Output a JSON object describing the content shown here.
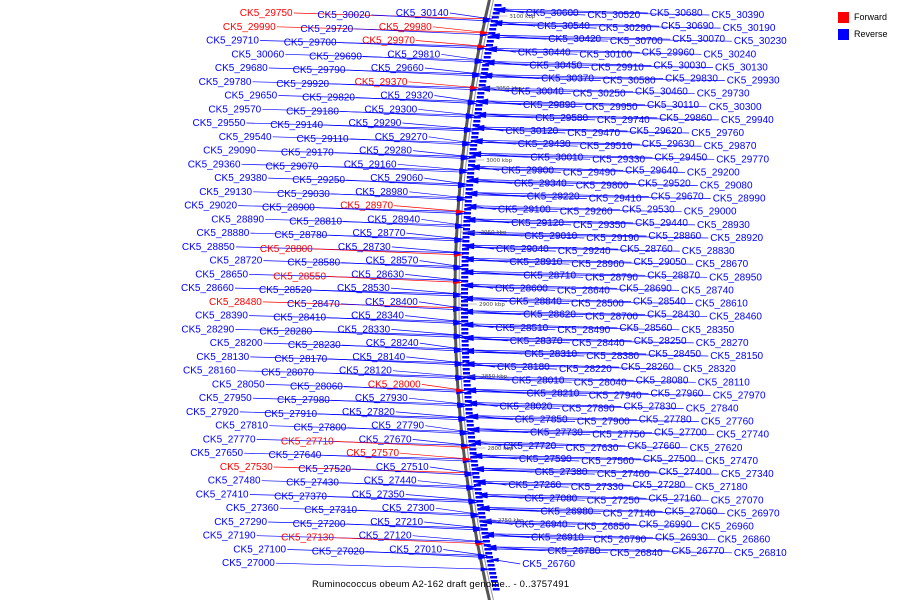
{
  "legend": {
    "forward_label": "Forward",
    "reverse_label": "Reverse",
    "forward_color": "#ff0000",
    "reverse_color": "#0000ff"
  },
  "caption": "Ruminococcus obeum A2-162 draft genome.. - 0..3757491",
  "scale_labels": [
    "3100 kbp",
    "3050 kbp",
    "3000 kbp",
    "2950 kbp",
    "2900 kbp",
    "2850 kbp",
    "2800 kbp",
    "2750 kbp"
  ],
  "left_labels": [
    {
      "text": "CK5_29750",
      "strand": "forward"
    },
    {
      "text": "CK5_30020",
      "strand": "reverse"
    },
    {
      "text": "CK5_30140",
      "strand": "reverse"
    },
    {
      "text": "CK5_29990",
      "strand": "forward"
    },
    {
      "text": "CK5_29720",
      "strand": "reverse"
    },
    {
      "text": "CK5_29980",
      "strand": "forward"
    },
    {
      "text": "CK5_29710",
      "strand": "reverse"
    },
    {
      "text": "CK5_29700",
      "strand": "reverse"
    },
    {
      "text": "CK5_29970",
      "strand": "forward"
    },
    {
      "text": "CK5_30060",
      "strand": "reverse"
    },
    {
      "text": "CK5_29690",
      "strand": "reverse"
    },
    {
      "text": "CK5_29810",
      "strand": "reverse"
    },
    {
      "text": "CK5_29680",
      "strand": "reverse"
    },
    {
      "text": "CK5_29790",
      "strand": "reverse"
    },
    {
      "text": "CK5_29660",
      "strand": "reverse"
    },
    {
      "text": "CK5_29780",
      "strand": "reverse"
    },
    {
      "text": "CK5_29920",
      "strand": "reverse"
    },
    {
      "text": "CK5_29370",
      "strand": "forward"
    },
    {
      "text": "CK5_29650",
      "strand": "reverse"
    },
    {
      "text": "CK5_29820",
      "strand": "reverse"
    },
    {
      "text": "CK5_29320",
      "strand": "reverse"
    },
    {
      "text": "CK5_29570",
      "strand": "reverse"
    },
    {
      "text": "CK5_29180",
      "strand": "reverse"
    },
    {
      "text": "CK5_29300",
      "strand": "reverse"
    },
    {
      "text": "CK5_29550",
      "strand": "reverse"
    },
    {
      "text": "CK5_29140",
      "strand": "reverse"
    },
    {
      "text": "CK5_29290",
      "strand": "reverse"
    },
    {
      "text": "CK5_29540",
      "strand": "reverse"
    },
    {
      "text": "CK5_29110",
      "strand": "reverse"
    },
    {
      "text": "CK5_29270",
      "strand": "reverse"
    },
    {
      "text": "CK5_29090",
      "strand": "reverse"
    },
    {
      "text": "CK5_29170",
      "strand": "reverse"
    },
    {
      "text": "CK5_29280",
      "strand": "reverse"
    },
    {
      "text": "CK5_29360",
      "strand": "reverse"
    },
    {
      "text": "CK5_29070",
      "strand": "reverse"
    },
    {
      "text": "CK5_29160",
      "strand": "reverse"
    },
    {
      "text": "CK5_29380",
      "strand": "reverse"
    },
    {
      "text": "CK5_29250",
      "strand": "reverse"
    },
    {
      "text": "CK5_29060",
      "strand": "reverse"
    },
    {
      "text": "CK5_29130",
      "strand": "reverse"
    },
    {
      "text": "CK5_29030",
      "strand": "reverse"
    },
    {
      "text": "CK5_28980",
      "strand": "reverse"
    },
    {
      "text": "CK5_29020",
      "strand": "reverse"
    },
    {
      "text": "CK5_28900",
      "strand": "reverse"
    },
    {
      "text": "CK5_28970",
      "strand": "forward"
    },
    {
      "text": "CK5_28890",
      "strand": "reverse"
    },
    {
      "text": "CK5_28810",
      "strand": "reverse"
    },
    {
      "text": "CK5_28940",
      "strand": "reverse"
    },
    {
      "text": "CK5_28880",
      "strand": "reverse"
    },
    {
      "text": "CK5_28780",
      "strand": "reverse"
    },
    {
      "text": "CK5_28770",
      "strand": "reverse"
    },
    {
      "text": "CK5_28850",
      "strand": "reverse"
    },
    {
      "text": "CK5_28800",
      "strand": "forward"
    },
    {
      "text": "CK5_28730",
      "strand": "reverse"
    },
    {
      "text": "CK5_28720",
      "strand": "reverse"
    },
    {
      "text": "CK5_28580",
      "strand": "reverse"
    },
    {
      "text": "CK5_28570",
      "strand": "reverse"
    },
    {
      "text": "CK5_28650",
      "strand": "reverse"
    },
    {
      "text": "CK5_28550",
      "strand": "forward"
    },
    {
      "text": "CK5_28630",
      "strand": "reverse"
    },
    {
      "text": "CK5_28660",
      "strand": "reverse"
    },
    {
      "text": "CK5_28520",
      "strand": "reverse"
    },
    {
      "text": "CK5_28530",
      "strand": "reverse"
    },
    {
      "text": "CK5_28480",
      "strand": "forward"
    },
    {
      "text": "CK5_28470",
      "strand": "reverse"
    },
    {
      "text": "CK5_28400",
      "strand": "reverse"
    },
    {
      "text": "CK5_28390",
      "strand": "reverse"
    },
    {
      "text": "CK5_28410",
      "strand": "reverse"
    },
    {
      "text": "CK5_28340",
      "strand": "reverse"
    },
    {
      "text": "CK5_28290",
      "strand": "reverse"
    },
    {
      "text": "CK5_28280",
      "strand": "reverse"
    },
    {
      "text": "CK5_28330",
      "strand": "reverse"
    },
    {
      "text": "CK5_28200",
      "strand": "reverse"
    },
    {
      "text": "CK5_28230",
      "strand": "reverse"
    },
    {
      "text": "CK5_28240",
      "strand": "reverse"
    },
    {
      "text": "CK5_28130",
      "strand": "reverse"
    },
    {
      "text": "CK5_28170",
      "strand": "reverse"
    },
    {
      "text": "CK5_28140",
      "strand": "reverse"
    },
    {
      "text": "CK5_28160",
      "strand": "reverse"
    },
    {
      "text": "CK5_28070",
      "strand": "reverse"
    },
    {
      "text": "CK5_28120",
      "strand": "reverse"
    },
    {
      "text": "CK5_28050",
      "strand": "reverse"
    },
    {
      "text": "CK5_28060",
      "strand": "reverse"
    },
    {
      "text": "CK5_28000",
      "strand": "forward"
    },
    {
      "text": "CK5_27950",
      "strand": "reverse"
    },
    {
      "text": "CK5_27980",
      "strand": "reverse"
    },
    {
      "text": "CK5_27930",
      "strand": "reverse"
    },
    {
      "text": "CK5_27920",
      "strand": "reverse"
    },
    {
      "text": "CK5_27910",
      "strand": "reverse"
    },
    {
      "text": "CK5_27820",
      "strand": "reverse"
    },
    {
      "text": "CK5_27810",
      "strand": "reverse"
    },
    {
      "text": "CK5_27800",
      "strand": "reverse"
    },
    {
      "text": "CK5_27790",
      "strand": "reverse"
    },
    {
      "text": "CK5_27770",
      "strand": "reverse"
    },
    {
      "text": "CK5_27710",
      "strand": "forward"
    },
    {
      "text": "CK5_27670",
      "strand": "reverse"
    },
    {
      "text": "CK5_27650",
      "strand": "reverse"
    },
    {
      "text": "CK5_27640",
      "strand": "reverse"
    },
    {
      "text": "CK5_27570",
      "strand": "forward"
    },
    {
      "text": "CK5_27530",
      "strand": "forward"
    },
    {
      "text": "CK5_27520",
      "strand": "reverse"
    },
    {
      "text": "CK5_27510",
      "strand": "reverse"
    },
    {
      "text": "CK5_27480",
      "strand": "reverse"
    },
    {
      "text": "CK5_27430",
      "strand": "reverse"
    },
    {
      "text": "CK5_27440",
      "strand": "reverse"
    },
    {
      "text": "CK5_27410",
      "strand": "reverse"
    },
    {
      "text": "CK5_27370",
      "strand": "reverse"
    },
    {
      "text": "CK5_27350",
      "strand": "reverse"
    },
    {
      "text": "CK5_27360",
      "strand": "reverse"
    },
    {
      "text": "CK5_27310",
      "strand": "reverse"
    },
    {
      "text": "CK5_27300",
      "strand": "reverse"
    },
    {
      "text": "CK5_27290",
      "strand": "reverse"
    },
    {
      "text": "CK5_27200",
      "strand": "reverse"
    },
    {
      "text": "CK5_27210",
      "strand": "reverse"
    },
    {
      "text": "CK5_27190",
      "strand": "reverse"
    },
    {
      "text": "CK5_27130",
      "strand": "forward"
    },
    {
      "text": "CK5_27120",
      "strand": "reverse"
    },
    {
      "text": "CK5_27100",
      "strand": "reverse"
    },
    {
      "text": "CK5_27020",
      "strand": "reverse"
    },
    {
      "text": "CK5_27010",
      "strand": "reverse"
    },
    {
      "text": "CK5_27000",
      "strand": "reverse"
    }
  ],
  "right_labels": [
    {
      "text": "CK5_30600",
      "strand": "reverse"
    },
    {
      "text": "CK5_30520",
      "strand": "reverse"
    },
    {
      "text": "CK5_30680",
      "strand": "reverse"
    },
    {
      "text": "CK5_30390",
      "strand": "reverse"
    },
    {
      "text": "CK5_30540",
      "strand": "reverse"
    },
    {
      "text": "CK5_30290",
      "strand": "reverse"
    },
    {
      "text": "CK5_30690",
      "strand": "reverse"
    },
    {
      "text": "CK5_30190",
      "strand": "reverse"
    },
    {
      "text": "CK5_30420",
      "strand": "reverse"
    },
    {
      "text": "CK5_30700",
      "strand": "reverse"
    },
    {
      "text": "CK5_30070",
      "strand": "reverse"
    },
    {
      "text": "CK5_30230",
      "strand": "reverse"
    },
    {
      "text": "CK5_30440",
      "strand": "reverse"
    },
    {
      "text": "CK5_30100",
      "strand": "reverse"
    },
    {
      "text": "CK5_29960",
      "strand": "reverse"
    },
    {
      "text": "CK5_30240",
      "strand": "reverse"
    },
    {
      "text": "CK5_30450",
      "strand": "reverse"
    },
    {
      "text": "CK5_29910",
      "strand": "reverse"
    },
    {
      "text": "CK5_30030",
      "strand": "reverse"
    },
    {
      "text": "CK5_30130",
      "strand": "reverse"
    },
    {
      "text": "CK5_30370",
      "strand": "reverse"
    },
    {
      "text": "CK5_30580",
      "strand": "reverse"
    },
    {
      "text": "CK5_29830",
      "strand": "reverse"
    },
    {
      "text": "CK5_29930",
      "strand": "reverse"
    },
    {
      "text": "CK5_30040",
      "strand": "reverse"
    },
    {
      "text": "CK5_30250",
      "strand": "reverse"
    },
    {
      "text": "CK5_30460",
      "strand": "reverse"
    },
    {
      "text": "CK5_29730",
      "strand": "reverse"
    },
    {
      "text": "CK5_29890",
      "strand": "reverse"
    },
    {
      "text": "CK5_29950",
      "strand": "reverse"
    },
    {
      "text": "CK5_30110",
      "strand": "reverse"
    },
    {
      "text": "CK5_30300",
      "strand": "reverse"
    },
    {
      "text": "CK5_29580",
      "strand": "reverse"
    },
    {
      "text": "CK5_29740",
      "strand": "reverse"
    },
    {
      "text": "CK5_29860",
      "strand": "reverse"
    },
    {
      "text": "CK5_29940",
      "strand": "reverse"
    },
    {
      "text": "CK5_30120",
      "strand": "reverse"
    },
    {
      "text": "CK5_29470",
      "strand": "reverse"
    },
    {
      "text": "CK5_29620",
      "strand": "reverse"
    },
    {
      "text": "CK5_29760",
      "strand": "reverse"
    },
    {
      "text": "CK5_29430",
      "strand": "reverse"
    },
    {
      "text": "CK5_29510",
      "strand": "reverse"
    },
    {
      "text": "CK5_29630",
      "strand": "reverse"
    },
    {
      "text": "CK5_29870",
      "strand": "reverse"
    },
    {
      "text": "CK5_30010",
      "strand": "reverse"
    },
    {
      "text": "CK5_29330",
      "strand": "reverse"
    },
    {
      "text": "CK5_29450",
      "strand": "reverse"
    },
    {
      "text": "CK5_29770",
      "strand": "reverse"
    },
    {
      "text": "CK5_29900",
      "strand": "reverse"
    },
    {
      "text": "CK5_29490",
      "strand": "reverse"
    },
    {
      "text": "CK5_29640",
      "strand": "reverse"
    },
    {
      "text": "CK5_29200",
      "strand": "reverse"
    },
    {
      "text": "CK5_29340",
      "strand": "reverse"
    },
    {
      "text": "CK5_29800",
      "strand": "reverse"
    },
    {
      "text": "CK5_29520",
      "strand": "reverse"
    },
    {
      "text": "CK5_29080",
      "strand": "reverse"
    },
    {
      "text": "CK5_29220",
      "strand": "reverse"
    },
    {
      "text": "CK5_29410",
      "strand": "reverse"
    },
    {
      "text": "CK5_29670",
      "strand": "reverse"
    },
    {
      "text": "CK5_28990",
      "strand": "reverse"
    },
    {
      "text": "CK5_29100",
      "strand": "reverse"
    },
    {
      "text": "CK5_29260",
      "strand": "reverse"
    },
    {
      "text": "CK5_29530",
      "strand": "reverse"
    },
    {
      "text": "CK5_29000",
      "strand": "reverse"
    },
    {
      "text": "CK5_29120",
      "strand": "reverse"
    },
    {
      "text": "CK5_29350",
      "strand": "reverse"
    },
    {
      "text": "CK5_29440",
      "strand": "reverse"
    },
    {
      "text": "CK5_28930",
      "strand": "reverse"
    },
    {
      "text": "CK5_29010",
      "strand": "reverse"
    },
    {
      "text": "CK5_29190",
      "strand": "reverse"
    },
    {
      "text": "CK5_28860",
      "strand": "reverse"
    },
    {
      "text": "CK5_28920",
      "strand": "reverse"
    },
    {
      "text": "CK5_29040",
      "strand": "reverse"
    },
    {
      "text": "CK5_29240",
      "strand": "reverse"
    },
    {
      "text": "CK5_28760",
      "strand": "reverse"
    },
    {
      "text": "CK5_28830",
      "strand": "reverse"
    },
    {
      "text": "CK5_28910",
      "strand": "reverse"
    },
    {
      "text": "CK5_28960",
      "strand": "reverse"
    },
    {
      "text": "CK5_29050",
      "strand": "reverse"
    },
    {
      "text": "CK5_28670",
      "strand": "reverse"
    },
    {
      "text": "CK5_28710",
      "strand": "reverse"
    },
    {
      "text": "CK5_28790",
      "strand": "reverse"
    },
    {
      "text": "CK5_28870",
      "strand": "reverse"
    },
    {
      "text": "CK5_28950",
      "strand": "reverse"
    },
    {
      "text": "CK5_28600",
      "strand": "reverse"
    },
    {
      "text": "CK5_28640",
      "strand": "reverse"
    },
    {
      "text": "CK5_28690",
      "strand": "reverse"
    },
    {
      "text": "CK5_28740",
      "strand": "reverse"
    },
    {
      "text": "CK5_28840",
      "strand": "reverse"
    },
    {
      "text": "CK5_28500",
      "strand": "reverse"
    },
    {
      "text": "CK5_28540",
      "strand": "reverse"
    },
    {
      "text": "CK5_28610",
      "strand": "reverse"
    },
    {
      "text": "CK5_28620",
      "strand": "reverse"
    },
    {
      "text": "CK5_28700",
      "strand": "reverse"
    },
    {
      "text": "CK5_28430",
      "strand": "reverse"
    },
    {
      "text": "CK5_28460",
      "strand": "reverse"
    },
    {
      "text": "CK5_28510",
      "strand": "reverse"
    },
    {
      "text": "CK5_28490",
      "strand": "reverse"
    },
    {
      "text": "CK5_28560",
      "strand": "reverse"
    },
    {
      "text": "CK5_28350",
      "strand": "reverse"
    },
    {
      "text": "CK5_28370",
      "strand": "reverse"
    },
    {
      "text": "CK5_28440",
      "strand": "reverse"
    },
    {
      "text": "CK5_28250",
      "strand": "reverse"
    },
    {
      "text": "CK5_28270",
      "strand": "reverse"
    },
    {
      "text": "CK5_28310",
      "strand": "reverse"
    },
    {
      "text": "CK5_28380",
      "strand": "reverse"
    },
    {
      "text": "CK5_28450",
      "strand": "reverse"
    },
    {
      "text": "CK5_28150",
      "strand": "reverse"
    },
    {
      "text": "CK5_28180",
      "strand": "reverse"
    },
    {
      "text": "CK5_28220",
      "strand": "reverse"
    },
    {
      "text": "CK5_28260",
      "strand": "reverse"
    },
    {
      "text": "CK5_28320",
      "strand": "reverse"
    },
    {
      "text": "CK5_28010",
      "strand": "reverse"
    },
    {
      "text": "CK5_28040",
      "strand": "reverse"
    },
    {
      "text": "CK5_28080",
      "strand": "reverse"
    },
    {
      "text": "CK5_28110",
      "strand": "reverse"
    },
    {
      "text": "CK5_28210",
      "strand": "reverse"
    },
    {
      "text": "CK5_27940",
      "strand": "reverse"
    },
    {
      "text": "CK5_27960",
      "strand": "reverse"
    },
    {
      "text": "CK5_27970",
      "strand": "reverse"
    },
    {
      "text": "CK5_28020",
      "strand": "reverse"
    },
    {
      "text": "CK5_27890",
      "strand": "reverse"
    },
    {
      "text": "CK5_27830",
      "strand": "reverse"
    },
    {
      "text": "CK5_27840",
      "strand": "reverse"
    },
    {
      "text": "CK5_27850",
      "strand": "reverse"
    },
    {
      "text": "CK5_27900",
      "strand": "reverse"
    },
    {
      "text": "CK5_27780",
      "strand": "reverse"
    },
    {
      "text": "CK5_27760",
      "strand": "reverse"
    },
    {
      "text": "CK5_27730",
      "strand": "reverse"
    },
    {
      "text": "CK5_27750",
      "strand": "reverse"
    },
    {
      "text": "CK5_27700",
      "strand": "reverse"
    },
    {
      "text": "CK5_27740",
      "strand": "reverse"
    },
    {
      "text": "CK5_27720",
      "strand": "reverse"
    },
    {
      "text": "CK5_27630",
      "strand": "reverse"
    },
    {
      "text": "CK5_27660",
      "strand": "reverse"
    },
    {
      "text": "CK5_27620",
      "strand": "reverse"
    },
    {
      "text": "CK5_27590",
      "strand": "reverse"
    },
    {
      "text": "CK5_27560",
      "strand": "reverse"
    },
    {
      "text": "CK5_27500",
      "strand": "reverse"
    },
    {
      "text": "CK5_27470",
      "strand": "reverse"
    },
    {
      "text": "CK5_27380",
      "strand": "reverse"
    },
    {
      "text": "CK5_27460",
      "strand": "reverse"
    },
    {
      "text": "CK5_27400",
      "strand": "reverse"
    },
    {
      "text": "CK5_27340",
      "strand": "reverse"
    },
    {
      "text": "CK5_27260",
      "strand": "reverse"
    },
    {
      "text": "CK5_27330",
      "strand": "reverse"
    },
    {
      "text": "CK5_27280",
      "strand": "reverse"
    },
    {
      "text": "CK5_27180",
      "strand": "reverse"
    },
    {
      "text": "CK5_27080",
      "strand": "reverse"
    },
    {
      "text": "CK5_27250",
      "strand": "reverse"
    },
    {
      "text": "CK5_27160",
      "strand": "reverse"
    },
    {
      "text": "CK5_27070",
      "strand": "reverse"
    },
    {
      "text": "CK5_26980",
      "strand": "reverse"
    },
    {
      "text": "CK5_27140",
      "strand": "reverse"
    },
    {
      "text": "CK5_27060",
      "strand": "reverse"
    },
    {
      "text": "CK5_26970",
      "strand": "reverse"
    },
    {
      "text": "CK5_26940",
      "strand": "reverse"
    },
    {
      "text": "CK5_26850",
      "strand": "reverse"
    },
    {
      "text": "CK5_26990",
      "strand": "reverse"
    },
    {
      "text": "CK5_26960",
      "strand": "reverse"
    },
    {
      "text": "CK5_26910",
      "strand": "reverse"
    },
    {
      "text": "CK5_26790",
      "strand": "reverse"
    },
    {
      "text": "CK5_26930",
      "strand": "reverse"
    },
    {
      "text": "CK5_26860",
      "strand": "reverse"
    },
    {
      "text": "CK5_26780",
      "strand": "reverse"
    },
    {
      "text": "CK5_26840",
      "strand": "reverse"
    },
    {
      "text": "CK5_26770",
      "strand": "reverse"
    },
    {
      "text": "CK5_26810",
      "strand": "reverse"
    },
    {
      "text": "CK5_26760",
      "strand": "reverse"
    }
  ]
}
